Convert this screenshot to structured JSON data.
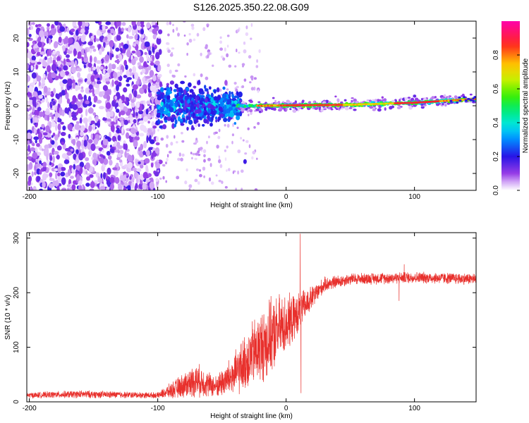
{
  "title": "S126.2025.350.22.08.G09",
  "chart_data": [
    {
      "type": "heatmap",
      "panel": "top",
      "xlabel": "Height of straight line (km)",
      "ylabel": "Frequency (Hz)",
      "xlim": [
        -202,
        148
      ],
      "ylim": [
        -25,
        25
      ],
      "x_ticks": [
        -200,
        -100,
        0,
        100
      ],
      "x_tick_labels": [
        "-200",
        "-100",
        "0",
        "100"
      ],
      "y_ticks": [
        -20,
        -10,
        0,
        10,
        20
      ],
      "y_tick_labels": [
        "-20",
        "-10",
        "0",
        "10",
        "20"
      ],
      "colorbar": {
        "label": "Normalized spectral amplitude",
        "range": [
          0,
          1
        ],
        "ticks": [
          0.0,
          0.2,
          0.4,
          0.6,
          0.8
        ],
        "tick_labels": [
          "0.0",
          "0.2",
          "0.4",
          "0.6",
          "0.8"
        ],
        "colormap": "rainbow"
      },
      "features": {
        "noise_region_x": [
          -202,
          -100
        ],
        "cloud_region_x": [
          -100,
          -35
        ],
        "ridge": [
          {
            "x": -20,
            "freq": 0.0
          },
          {
            "x": 0,
            "freq": 0.1
          },
          {
            "x": 50,
            "freq": 0.3
          },
          {
            "x": 100,
            "freq": 0.9
          },
          {
            "x": 148,
            "freq": 2.0
          }
        ],
        "isolated_blob": {
          "x": -32,
          "freq": -16.5
        }
      }
    },
    {
      "type": "line",
      "panel": "bottom",
      "xlabel": "Height of straight line (km)",
      "ylabel": "SNR (10 * v/v)",
      "xlim": [
        -202,
        148
      ],
      "ylim": [
        0,
        310
      ],
      "x_ticks": [
        -200,
        -100,
        0,
        100
      ],
      "x_tick_labels": [
        "-200",
        "-100",
        "0",
        "100"
      ],
      "y_ticks": [
        0,
        100,
        200,
        300
      ],
      "y_tick_labels": [
        "0",
        "100",
        "200",
        "300"
      ],
      "series": [
        {
          "name": "SNR",
          "color": "#e8302c",
          "envelope_points": [
            {
              "x": -202,
              "base": 12,
              "amp": 6
            },
            {
              "x": -160,
              "base": 14,
              "amp": 8
            },
            {
              "x": -100,
              "base": 12,
              "amp": 6
            },
            {
              "x": -88,
              "base": 22,
              "amp": 18
            },
            {
              "x": -70,
              "base": 40,
              "amp": 35
            },
            {
              "x": -55,
              "base": 28,
              "amp": 22
            },
            {
              "x": -40,
              "base": 50,
              "amp": 45
            },
            {
              "x": -25,
              "base": 90,
              "amp": 70
            },
            {
              "x": -15,
              "base": 110,
              "amp": 80
            },
            {
              "x": -5,
              "base": 135,
              "amp": 70
            },
            {
              "x": 5,
              "base": 150,
              "amp": 50
            },
            {
              "x": 10,
              "base": 165,
              "amp": 40
            },
            {
              "x": 20,
              "base": 190,
              "amp": 25
            },
            {
              "x": 30,
              "base": 215,
              "amp": 15
            },
            {
              "x": 50,
              "base": 225,
              "amp": 12
            },
            {
              "x": 100,
              "base": 228,
              "amp": 12
            },
            {
              "x": 148,
              "base": 225,
              "amp": 12
            }
          ],
          "spikes": [
            {
              "x": 11,
              "value": 308
            },
            {
              "x": 11.6,
              "value": 16
            },
            {
              "x": 88,
              "value": 185
            },
            {
              "x": 92,
              "value": 252
            }
          ]
        }
      ]
    }
  ]
}
